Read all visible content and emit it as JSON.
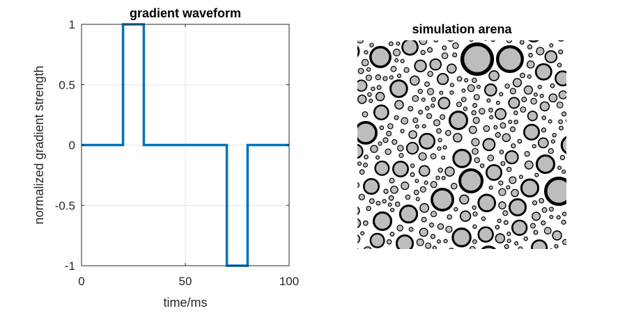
{
  "chart_data": [
    {
      "type": "line",
      "title": "gradient waveform",
      "xlabel": "time/ms",
      "ylabel": "normalized gradient strength",
      "xlim": [
        0,
        100
      ],
      "ylim": [
        -1,
        1
      ],
      "xticks": [
        0,
        50,
        100
      ],
      "xtick_labels": [
        "0",
        "50",
        "100"
      ],
      "yticks": [
        -1,
        -0.5,
        0,
        0.5,
        1
      ],
      "ytick_labels": [
        "-1",
        "-0.5",
        "0",
        "0.5",
        "1"
      ],
      "grid": true,
      "series": [
        {
          "color": "#0072BD",
          "x": [
            0,
            20,
            20,
            30,
            30,
            70,
            70,
            80,
            80,
            100
          ],
          "y": [
            0,
            0,
            1,
            1,
            0,
            0,
            -1,
            -1,
            0,
            0
          ]
        }
      ]
    },
    {
      "type": "scatter",
      "title": "simulation arena",
      "description_free": true,
      "ring_color": "#000000",
      "fill_color": "#bdbdbd",
      "background": "#ffffff"
    }
  ]
}
